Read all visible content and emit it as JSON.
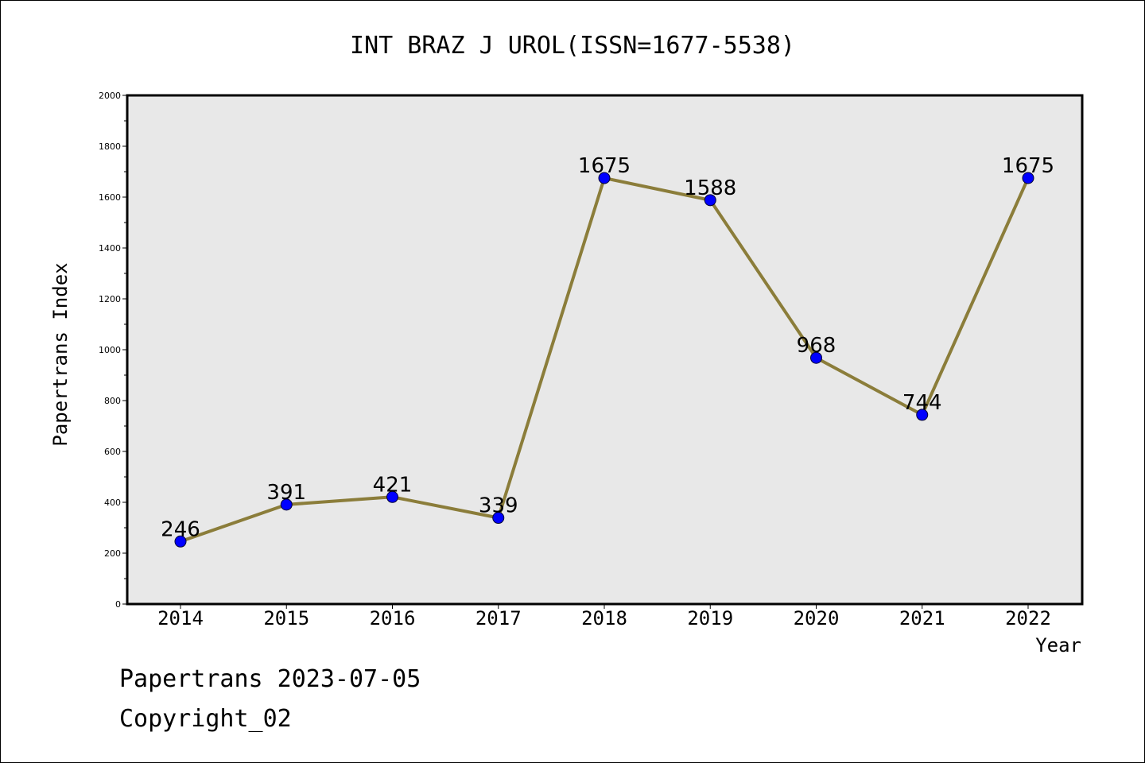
{
  "chart_data": {
    "type": "line",
    "title": "INT BRAZ J UROL(ISSN=1677-5538)",
    "xlabel": "Year",
    "ylabel": "Papertrans Index",
    "categories": [
      "2014",
      "2015",
      "2016",
      "2017",
      "2018",
      "2019",
      "2020",
      "2021",
      "2022"
    ],
    "values": [
      246,
      391,
      421,
      339,
      1675,
      1588,
      968,
      744,
      1675
    ],
    "data_labels": [
      "246",
      "391",
      "421",
      "339",
      "1675",
      "1588",
      "968",
      "744",
      "1675"
    ],
    "ylim": [
      0,
      2000
    ],
    "yticks": [
      "0",
      "200",
      "400",
      "600",
      "800",
      "1000",
      "1200",
      "1400",
      "1600",
      "1800",
      "2000"
    ],
    "grid": false,
    "legend": "none",
    "colors": {
      "line": "#8b7d3a",
      "marker": "#0000ff",
      "plot_background": "#e8e8e8"
    }
  },
  "footer": {
    "line1": "Papertrans 2023-07-05",
    "line2": "Copyright_02"
  }
}
